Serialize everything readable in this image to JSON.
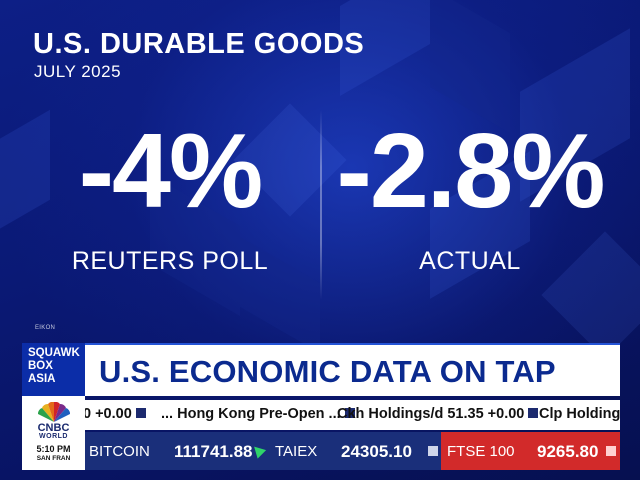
{
  "graphic": {
    "title": "U.S. DURABLE GOODS",
    "subtitle": "JULY 2025",
    "left_value": "-4%",
    "left_caption": "REUTERS POLL",
    "right_value": "-2.8%",
    "right_caption": "ACTUAL",
    "source_tag": "EIKON"
  },
  "lower_third": {
    "show_name_lines": [
      "SQUAWK",
      "BOX",
      "ASIA"
    ],
    "headline": "U.S. ECONOMIC DATA ON TAP"
  },
  "ticker_top": [
    "0 +0.00",
    "... Hong Kong Pre-Open ...",
    "Ckh Holdings/d 51.35 +0.00",
    "Clp Holdings/"
  ],
  "network": {
    "brand": "CNBC",
    "region": "WORLD",
    "time": "5:10 PM",
    "city": "SAN FRAN"
  },
  "ticker_bottom": [
    {
      "label": "BITCOIN",
      "value": "111741.88"
    },
    {
      "label": "TAIEX",
      "value": "24305.10"
    },
    {
      "label": "FTSE 100",
      "value": "9265.80"
    }
  ],
  "colors": {
    "background": "#0a1a6e",
    "headline_text": "#0b2a8f",
    "ticker_bottom_bg": "#1a2f7a",
    "down_highlight": "#d22a2a",
    "up_indicator": "#2fd46a"
  }
}
